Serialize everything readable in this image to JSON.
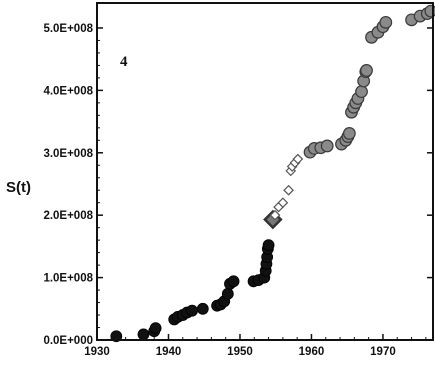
{
  "chart_data": {
    "type": "scatter",
    "title": "",
    "panel_label": "4",
    "xlabel": "",
    "ylabel": "S(t)",
    "xlim": [
      1930,
      1977
    ],
    "ylim": [
      0,
      540000000
    ],
    "x_ticks": [
      1930,
      1940,
      1950,
      1960,
      1970
    ],
    "x_tick_labels": [
      "1930",
      "1940",
      "1950",
      "1960",
      "1970"
    ],
    "y_ticks": [
      0,
      100000000,
      200000000,
      300000000,
      400000000,
      500000000
    ],
    "y_tick_labels": [
      "0.0E+000",
      "1.0E+008",
      "2.0E+008",
      "3.0E+008",
      "4.0E+008",
      "5.0E+008"
    ],
    "grid": false,
    "legend": "none",
    "series": [
      {
        "marker": "filled-circle",
        "color": "#111111",
        "points": [
          [
            1932.7,
            6000000
          ],
          [
            1936.5,
            9000000
          ],
          [
            1938.0,
            14000000
          ],
          [
            1938.2,
            19000000
          ],
          [
            1940.8,
            33000000
          ],
          [
            1941.3,
            37000000
          ],
          [
            1942.0,
            40000000
          ],
          [
            1942.6,
            44000000
          ],
          [
            1943.3,
            47000000
          ],
          [
            1944.8,
            50000000
          ],
          [
            1946.8,
            55000000
          ],
          [
            1947.3,
            57000000
          ],
          [
            1947.8,
            62000000
          ],
          [
            1948.3,
            74000000
          ],
          [
            1948.6,
            90000000
          ],
          [
            1949.1,
            94000000
          ],
          [
            1951.9,
            94000000
          ],
          [
            1952.6,
            96000000
          ],
          [
            1953.4,
            100000000
          ],
          [
            1953.6,
            111000000
          ],
          [
            1953.7,
            122000000
          ],
          [
            1953.8,
            133000000
          ],
          [
            1953.9,
            146000000
          ],
          [
            1954.0,
            152000000
          ]
        ]
      },
      {
        "marker": "diamond-large",
        "color": "#333333",
        "points": [
          [
            1954.6,
            193000000
          ]
        ]
      },
      {
        "marker": "open-diamond",
        "color": "#555555",
        "points": [
          [
            1954.9,
            200000000
          ],
          [
            1955.4,
            213000000
          ],
          [
            1956.0,
            220000000
          ],
          [
            1956.8,
            240000000
          ],
          [
            1957.1,
            271000000
          ],
          [
            1957.3,
            278000000
          ],
          [
            1957.7,
            284000000
          ],
          [
            1958.1,
            290000000
          ]
        ]
      },
      {
        "marker": "gray-circle",
        "color": "#8a8a8a",
        "points": [
          [
            1959.8,
            301000000
          ],
          [
            1960.4,
            307000000
          ],
          [
            1961.3,
            308000000
          ],
          [
            1962.2,
            311000000
          ],
          [
            1964.2,
            314000000
          ],
          [
            1964.8,
            320000000
          ],
          [
            1965.1,
            326000000
          ],
          [
            1965.3,
            331000000
          ],
          [
            1965.6,
            365000000
          ],
          [
            1965.9,
            373000000
          ],
          [
            1966.2,
            380000000
          ],
          [
            1966.5,
            387000000
          ],
          [
            1967.0,
            398000000
          ],
          [
            1967.3,
            415000000
          ],
          [
            1967.6,
            430000000
          ],
          [
            1967.7,
            432000000
          ],
          [
            1968.4,
            485000000
          ],
          [
            1969.3,
            493000000
          ],
          [
            1970.0,
            502000000
          ],
          [
            1970.4,
            509000000
          ],
          [
            1974.0,
            513000000
          ],
          [
            1975.2,
            519000000
          ],
          [
            1976.2,
            523000000
          ],
          [
            1976.7,
            527000000
          ]
        ]
      }
    ]
  }
}
